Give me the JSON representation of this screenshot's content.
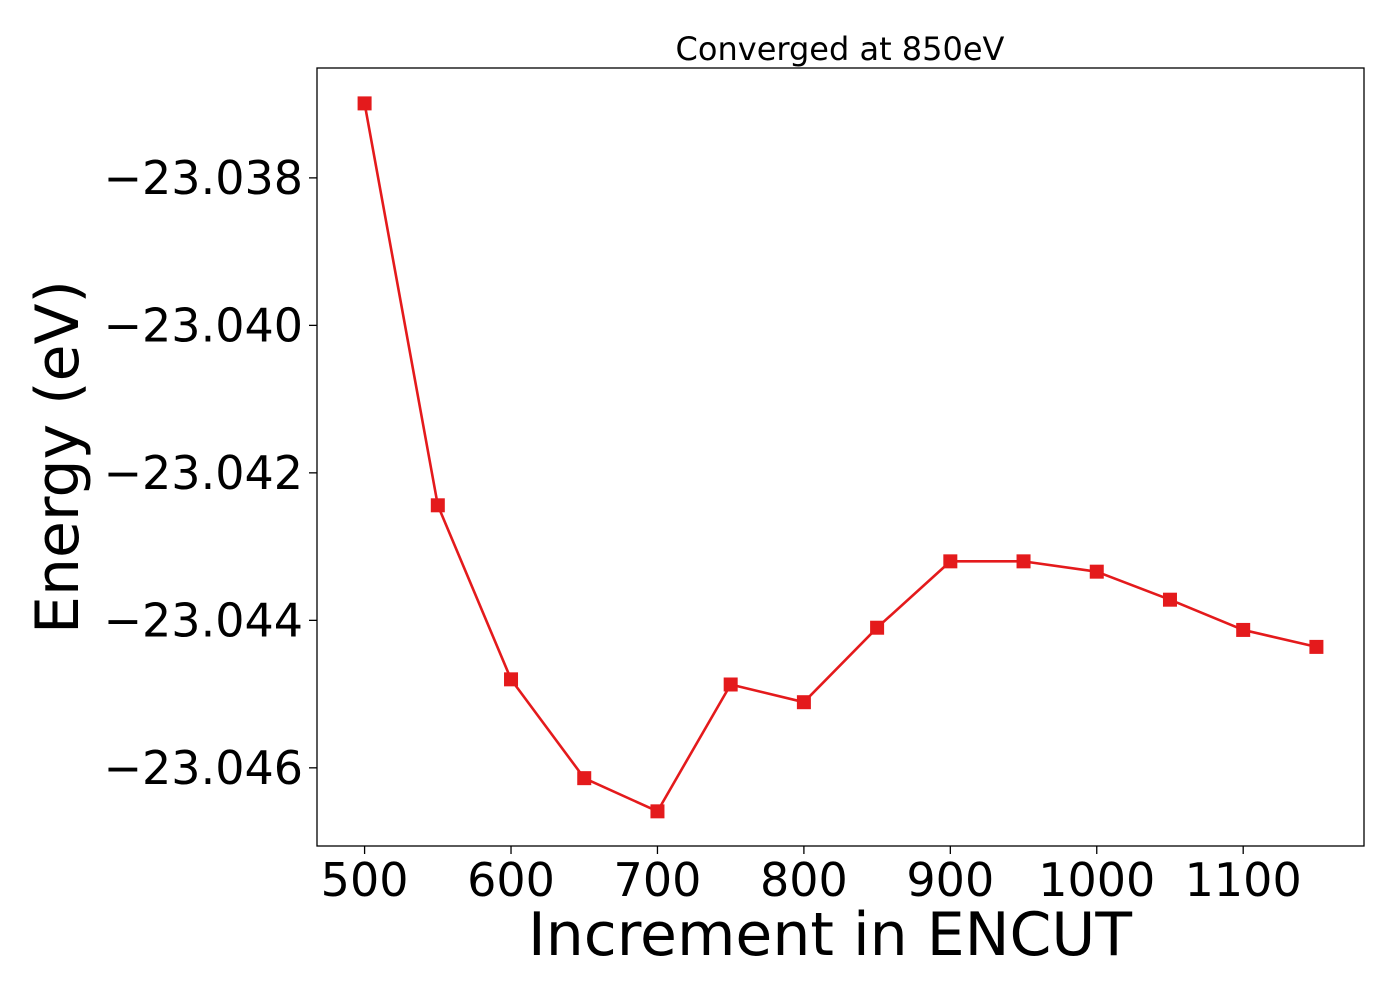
{
  "chart_data": {
    "type": "line",
    "title": "Converged at 850eV",
    "xlabel": "Increment in ENCUT",
    "ylabel": "Energy (eV)",
    "x": [
      500,
      550,
      600,
      650,
      700,
      750,
      800,
      850,
      900,
      950,
      1000,
      1050,
      1100,
      1150
    ],
    "series": [
      {
        "values": [
          -23.03699,
          -23.04244,
          -23.0448,
          -23.04614,
          -23.04659,
          -23.04487,
          -23.04511,
          -23.0441,
          -23.0432,
          -23.0432,
          -23.04334,
          -23.04372,
          -23.04413,
          -23.04436
        ],
        "color": "#e41a1c",
        "marker": "square"
      }
    ],
    "xticks": [
      500,
      600,
      700,
      800,
      900,
      1000,
      1100
    ],
    "xtick_labels": [
      "500",
      "600",
      "700",
      "800",
      "900",
      "1000",
      "1100"
    ],
    "yticks": [
      -23.038,
      -23.04,
      -23.042,
      -23.044,
      -23.046
    ],
    "ytick_labels": [
      "−23.038",
      "−23.040",
      "−23.042",
      "−23.044",
      "−23.046"
    ],
    "xlim": [
      467.5,
      1182.5
    ],
    "ylim": [
      -23.04706,
      -23.03651
    ],
    "grid": false,
    "legend": "none"
  }
}
